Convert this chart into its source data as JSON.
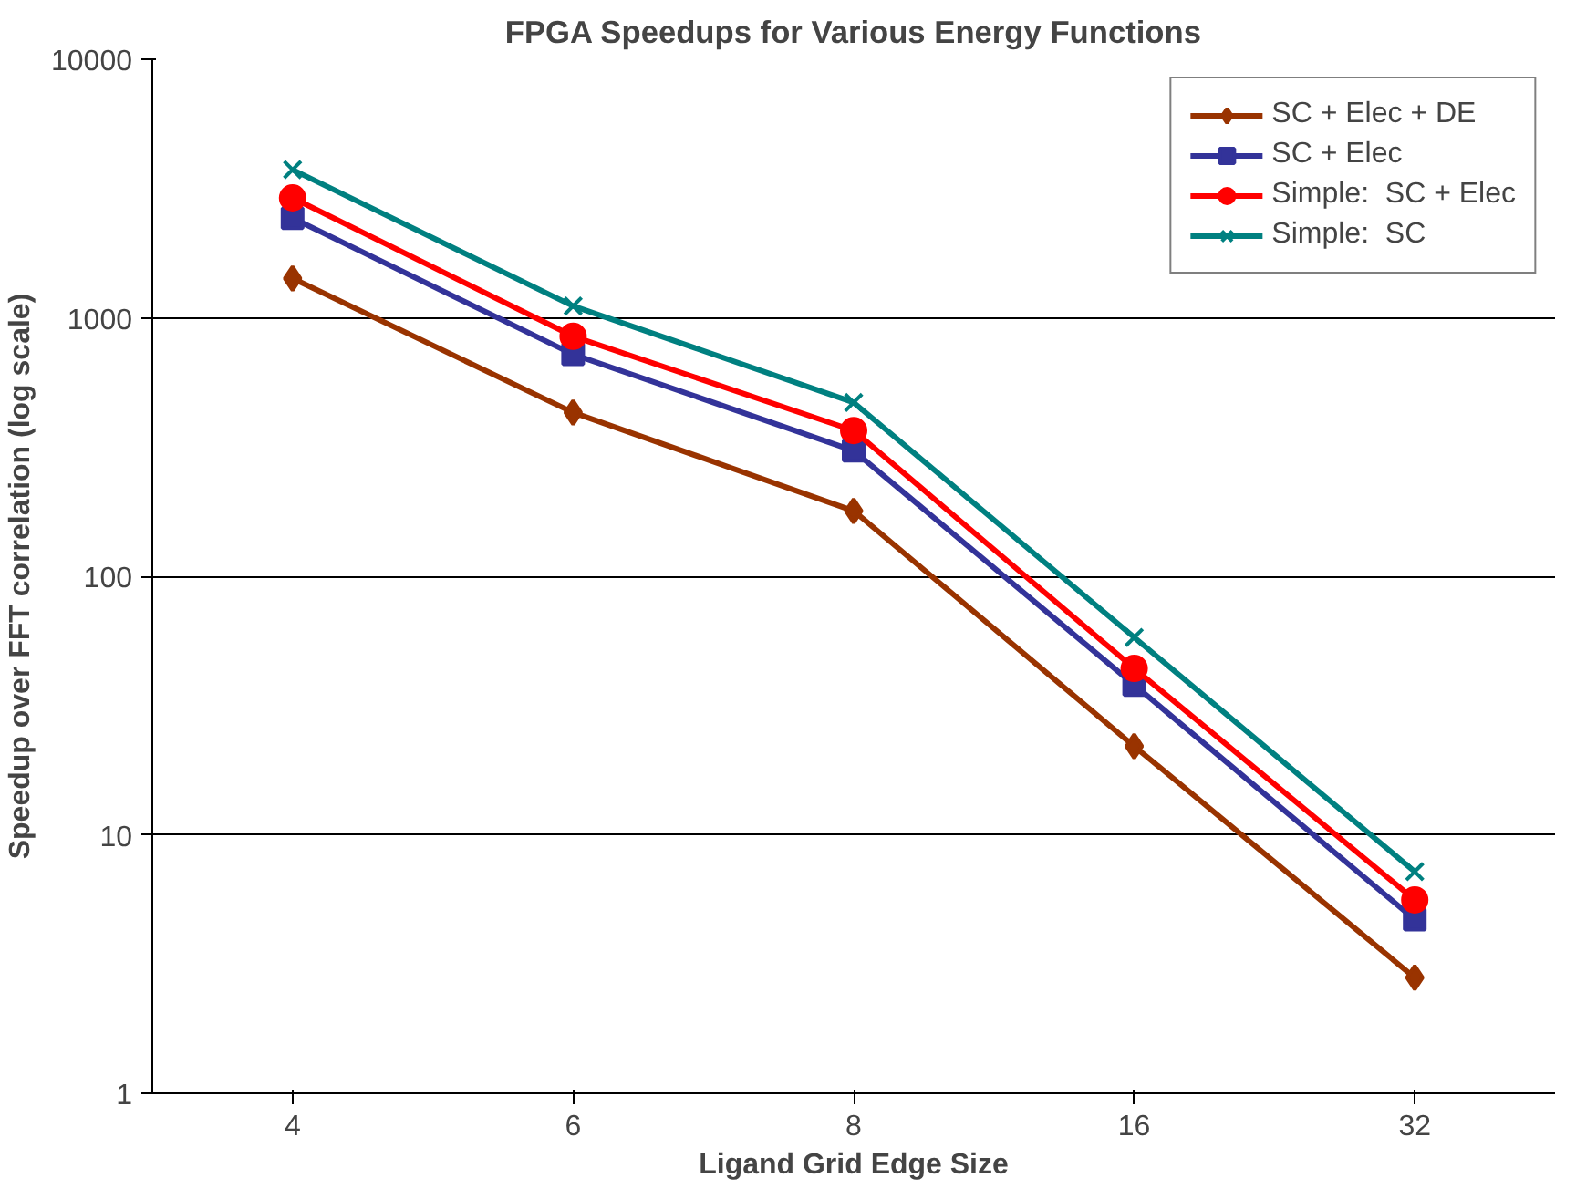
{
  "chart_data": {
    "type": "line",
    "title": "FPGA Speedups for Various Energy Functions",
    "xlabel": "Ligand Grid Edge Size",
    "ylabel": "Speedup over FFT correlation (log scale)",
    "categories": [
      "4",
      "6",
      "8",
      "16",
      "32"
    ],
    "log": "y",
    "ylim": [
      1,
      10000
    ],
    "yticks": [
      1,
      10,
      100,
      1000,
      10000
    ],
    "grid": "y",
    "legend": "top right",
    "series": [
      {
        "name": "SC + Elec + DE",
        "color": "#993300",
        "marker": "diamond",
        "values": [
          1420,
          430,
          179,
          22,
          2.8
        ]
      },
      {
        "name": "SC + Elec",
        "color": "#333399",
        "marker": "square",
        "values": [
          2430,
          722,
          306,
          38,
          4.7
        ]
      },
      {
        "name": "Simple:  SC + Elec",
        "color": "#ff0000",
        "marker": "circle",
        "values": [
          2910,
          848,
          366,
          44,
          5.6
        ]
      },
      {
        "name": "Simple:  SC",
        "color": "#008080",
        "marker": "cross",
        "values": [
          3740,
          1110,
          470,
          58,
          7.2
        ]
      }
    ]
  }
}
